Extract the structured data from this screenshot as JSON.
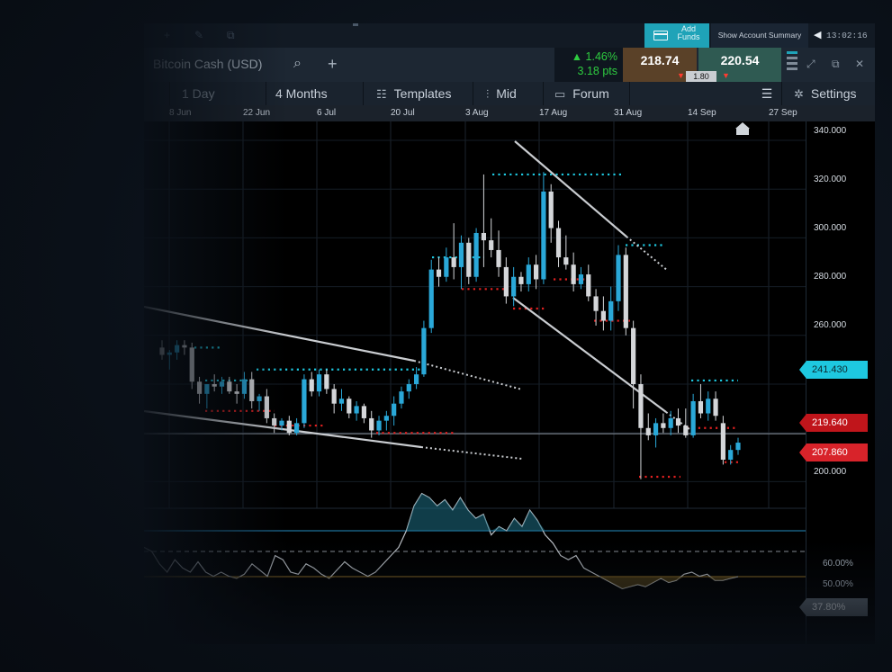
{
  "topbar": {
    "add_funds": "Add\nFunds",
    "account_summary": "Show Account Summary",
    "clock": "13:02:16",
    "icons": [
      "plus-icon",
      "edit-icon",
      "popout-icon",
      "card-icon",
      "chevron-left-icon"
    ]
  },
  "instrument": {
    "name": "Bitcoin Cash (USD)",
    "change_pct": "▲ 1.46%",
    "change_pts": "3.18 pts",
    "sell_price": "218.74",
    "buy_price": "220.54",
    "spread": "1.80"
  },
  "toolbar": {
    "interval": "1 Day",
    "range": "4 Months",
    "templates": "Templates",
    "price_type": "Mid",
    "forum": "Forum",
    "settings": "Settings"
  },
  "date_axis": [
    "8 Jun",
    "22 Jun",
    "6 Jul",
    "20 Jul",
    "3 Aug",
    "17 Aug",
    "31 Aug",
    "14 Sep",
    "27 Sep"
  ],
  "price_axis": [
    "340.000",
    "320.000",
    "300.000",
    "280.000",
    "260.000",
    "200.000"
  ],
  "price_badges": {
    "resistance": "241.430",
    "current": "219.640",
    "support": "207.860"
  },
  "indicator_axis": [
    "60.00%",
    "50.00%"
  ],
  "indicator_badge": "37.80%",
  "chart_data": {
    "type": "candlestick",
    "y_axis_range": [
      190,
      344
    ],
    "current_price": 219.64,
    "candles": [
      {
        "o": 255,
        "h": 258,
        "l": 250,
        "c": 252
      },
      {
        "o": 252,
        "h": 254,
        "l": 246,
        "c": 253
      },
      {
        "o": 253,
        "h": 258,
        "l": 250,
        "c": 256
      },
      {
        "o": 256,
        "h": 258,
        "l": 252,
        "c": 255
      },
      {
        "o": 255,
        "h": 257,
        "l": 238,
        "c": 241
      },
      {
        "o": 241,
        "h": 243,
        "l": 232,
        "c": 236
      },
      {
        "o": 236,
        "h": 240,
        "l": 230,
        "c": 240
      },
      {
        "o": 240,
        "h": 244,
        "l": 237,
        "c": 239
      },
      {
        "o": 239,
        "h": 243,
        "l": 236,
        "c": 241
      },
      {
        "o": 241,
        "h": 243,
        "l": 236,
        "c": 237
      },
      {
        "o": 237,
        "h": 240,
        "l": 232,
        "c": 236
      },
      {
        "o": 236,
        "h": 245,
        "l": 234,
        "c": 242
      },
      {
        "o": 242,
        "h": 245,
        "l": 230,
        "c": 233
      },
      {
        "o": 233,
        "h": 236,
        "l": 229,
        "c": 235
      },
      {
        "o": 235,
        "h": 238,
        "l": 224,
        "c": 226
      },
      {
        "o": 226,
        "h": 228,
        "l": 220,
        "c": 223
      },
      {
        "o": 223,
        "h": 226,
        "l": 221,
        "c": 225
      },
      {
        "o": 225,
        "h": 227,
        "l": 219,
        "c": 220
      },
      {
        "o": 220,
        "h": 226,
        "l": 219,
        "c": 224
      },
      {
        "o": 224,
        "h": 244,
        "l": 222,
        "c": 242
      },
      {
        "o": 242,
        "h": 245,
        "l": 235,
        "c": 237
      },
      {
        "o": 237,
        "h": 246,
        "l": 235,
        "c": 244
      },
      {
        "o": 244,
        "h": 246,
        "l": 236,
        "c": 238
      },
      {
        "o": 238,
        "h": 240,
        "l": 228,
        "c": 232
      },
      {
        "o": 232,
        "h": 238,
        "l": 229,
        "c": 234
      },
      {
        "o": 234,
        "h": 235,
        "l": 226,
        "c": 228
      },
      {
        "o": 228,
        "h": 233,
        "l": 225,
        "c": 231
      },
      {
        "o": 231,
        "h": 232,
        "l": 224,
        "c": 226
      },
      {
        "o": 226,
        "h": 229,
        "l": 218,
        "c": 221
      },
      {
        "o": 221,
        "h": 227,
        "l": 219,
        "c": 225
      },
      {
        "o": 225,
        "h": 229,
        "l": 221,
        "c": 227
      },
      {
        "o": 227,
        "h": 235,
        "l": 223,
        "c": 232
      },
      {
        "o": 232,
        "h": 239,
        "l": 230,
        "c": 237
      },
      {
        "o": 237,
        "h": 242,
        "l": 234,
        "c": 240
      },
      {
        "o": 240,
        "h": 247,
        "l": 238,
        "c": 244
      },
      {
        "o": 244,
        "h": 266,
        "l": 243,
        "c": 263
      },
      {
        "o": 263,
        "h": 291,
        "l": 261,
        "c": 287
      },
      {
        "o": 287,
        "h": 292,
        "l": 280,
        "c": 284
      },
      {
        "o": 284,
        "h": 296,
        "l": 282,
        "c": 292
      },
      {
        "o": 292,
        "h": 306,
        "l": 283,
        "c": 288
      },
      {
        "o": 288,
        "h": 301,
        "l": 279,
        "c": 298
      },
      {
        "o": 298,
        "h": 300,
        "l": 281,
        "c": 284
      },
      {
        "o": 284,
        "h": 304,
        "l": 282,
        "c": 302
      },
      {
        "o": 302,
        "h": 326,
        "l": 288,
        "c": 299
      },
      {
        "o": 299,
        "h": 308,
        "l": 292,
        "c": 295
      },
      {
        "o": 295,
        "h": 303,
        "l": 284,
        "c": 288
      },
      {
        "o": 288,
        "h": 292,
        "l": 273,
        "c": 276
      },
      {
        "o": 276,
        "h": 288,
        "l": 272,
        "c": 284
      },
      {
        "o": 284,
        "h": 286,
        "l": 278,
        "c": 281
      },
      {
        "o": 281,
        "h": 292,
        "l": 278,
        "c": 289
      },
      {
        "o": 289,
        "h": 293,
        "l": 279,
        "c": 283
      },
      {
        "o": 283,
        "h": 327,
        "l": 281,
        "c": 319
      },
      {
        "o": 319,
        "h": 322,
        "l": 298,
        "c": 304
      },
      {
        "o": 304,
        "h": 307,
        "l": 288,
        "c": 292
      },
      {
        "o": 292,
        "h": 301,
        "l": 287,
        "c": 289
      },
      {
        "o": 289,
        "h": 294,
        "l": 278,
        "c": 281
      },
      {
        "o": 281,
        "h": 288,
        "l": 279,
        "c": 285
      },
      {
        "o": 285,
        "h": 289,
        "l": 274,
        "c": 276
      },
      {
        "o": 276,
        "h": 279,
        "l": 264,
        "c": 270
      },
      {
        "o": 270,
        "h": 276,
        "l": 262,
        "c": 266
      },
      {
        "o": 266,
        "h": 280,
        "l": 262,
        "c": 274
      },
      {
        "o": 274,
        "h": 297,
        "l": 270,
        "c": 293
      },
      {
        "o": 293,
        "h": 296,
        "l": 260,
        "c": 263
      },
      {
        "o": 263,
        "h": 266,
        "l": 230,
        "c": 240
      },
      {
        "o": 240,
        "h": 244,
        "l": 201,
        "c": 222
      },
      {
        "o": 222,
        "h": 228,
        "l": 217,
        "c": 219
      },
      {
        "o": 219,
        "h": 226,
        "l": 214,
        "c": 224
      },
      {
        "o": 224,
        "h": 228,
        "l": 220,
        "c": 222
      },
      {
        "o": 222,
        "h": 229,
        "l": 219,
        "c": 226
      },
      {
        "o": 226,
        "h": 230,
        "l": 220,
        "c": 223
      },
      {
        "o": 223,
        "h": 230,
        "l": 218,
        "c": 219
      },
      {
        "o": 219,
        "h": 236,
        "l": 218,
        "c": 233
      },
      {
        "o": 233,
        "h": 240,
        "l": 226,
        "c": 228
      },
      {
        "o": 228,
        "h": 237,
        "l": 225,
        "c": 234
      },
      {
        "o": 234,
        "h": 237,
        "l": 225,
        "c": 227
      },
      {
        "o": 224,
        "h": 227,
        "l": 207,
        "c": 209
      },
      {
        "o": 209,
        "h": 215,
        "l": 207,
        "c": 213
      },
      {
        "o": 213,
        "h": 218,
        "l": 211,
        "c": 216
      }
    ],
    "indicator": {
      "upper": 60,
      "middle": 50,
      "lower": 37.8,
      "last": 37.8
    }
  }
}
